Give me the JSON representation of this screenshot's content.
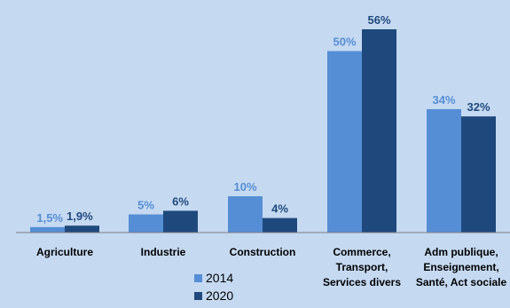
{
  "chart_data": {
    "type": "bar",
    "categories": [
      [
        "Agriculture"
      ],
      [
        "Industrie"
      ],
      [
        "Construction"
      ],
      [
        "Commerce,",
        "Transport,",
        "Services divers"
      ],
      [
        "Adm publique,",
        "Enseignement,",
        "Santé, Act sociale"
      ]
    ],
    "series": [
      {
        "name": "2014",
        "values": [
          1.5,
          5,
          10,
          50,
          34
        ],
        "labels": [
          "1,5%",
          "5%",
          "10%",
          "50%",
          "34%"
        ],
        "color": "#558ed5",
        "label_color": "#558ed5"
      },
      {
        "name": "2020",
        "values": [
          1.9,
          6,
          4,
          56,
          32
        ],
        "labels": [
          "1,9%",
          "6%",
          "4%",
          "56%",
          "32%"
        ],
        "color": "#1f497d",
        "label_color": "#1f497d"
      }
    ],
    "ylim": [
      0,
      56
    ],
    "grid": false,
    "legend": "bottom-center",
    "axis_color": "#7f7f7f"
  }
}
